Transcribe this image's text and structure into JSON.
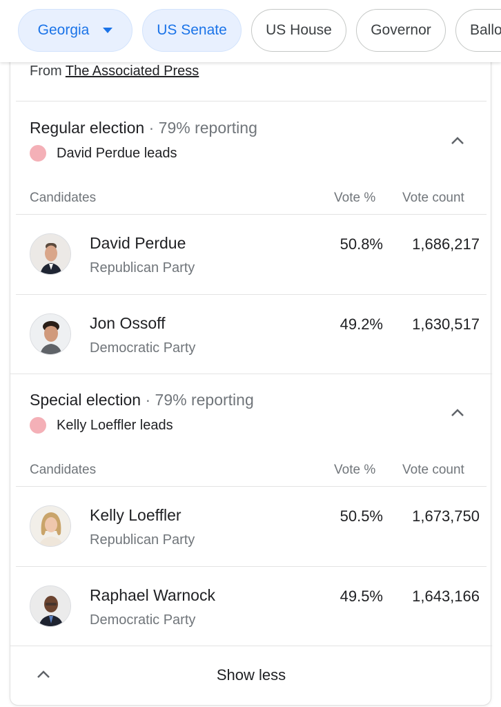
{
  "chips": [
    {
      "label": "Georgia",
      "dropdown": true,
      "active": true
    },
    {
      "label": "US Senate",
      "active": true
    },
    {
      "label": "US House",
      "active": false
    },
    {
      "label": "Governor",
      "active": false
    },
    {
      "label": "Ballo",
      "active": false
    }
  ],
  "source": {
    "prefix": "From ",
    "link": "The Associated Press"
  },
  "columns": {
    "candidates": "Candidates",
    "vote_pct": "Vote %",
    "vote_count": "Vote count"
  },
  "regular": {
    "title": "Regular election",
    "reporting": " · 79% reporting",
    "leader": "David Perdue leads",
    "candidates": [
      {
        "name": "David Perdue",
        "party": "Republican Party",
        "pct": "50.8%",
        "count": "1,686,217"
      },
      {
        "name": "Jon Ossoff",
        "party": "Democratic Party",
        "pct": "49.2%",
        "count": "1,630,517"
      }
    ]
  },
  "special": {
    "title": "Special election",
    "reporting": " · 79% reporting",
    "leader": "Kelly Loeffler leads",
    "candidates": [
      {
        "name": "Kelly Loeffler",
        "party": "Republican Party",
        "pct": "50.5%",
        "count": "1,673,750"
      },
      {
        "name": "Raphael Warnock",
        "party": "Democratic Party",
        "pct": "49.5%",
        "count": "1,643,166"
      }
    ]
  },
  "footer": {
    "label": "Show less"
  },
  "colors": {
    "leader_dot": "#f4b0b7",
    "chip_active_bg": "#e8f0fe",
    "chip_active_text": "#1a73e8"
  }
}
